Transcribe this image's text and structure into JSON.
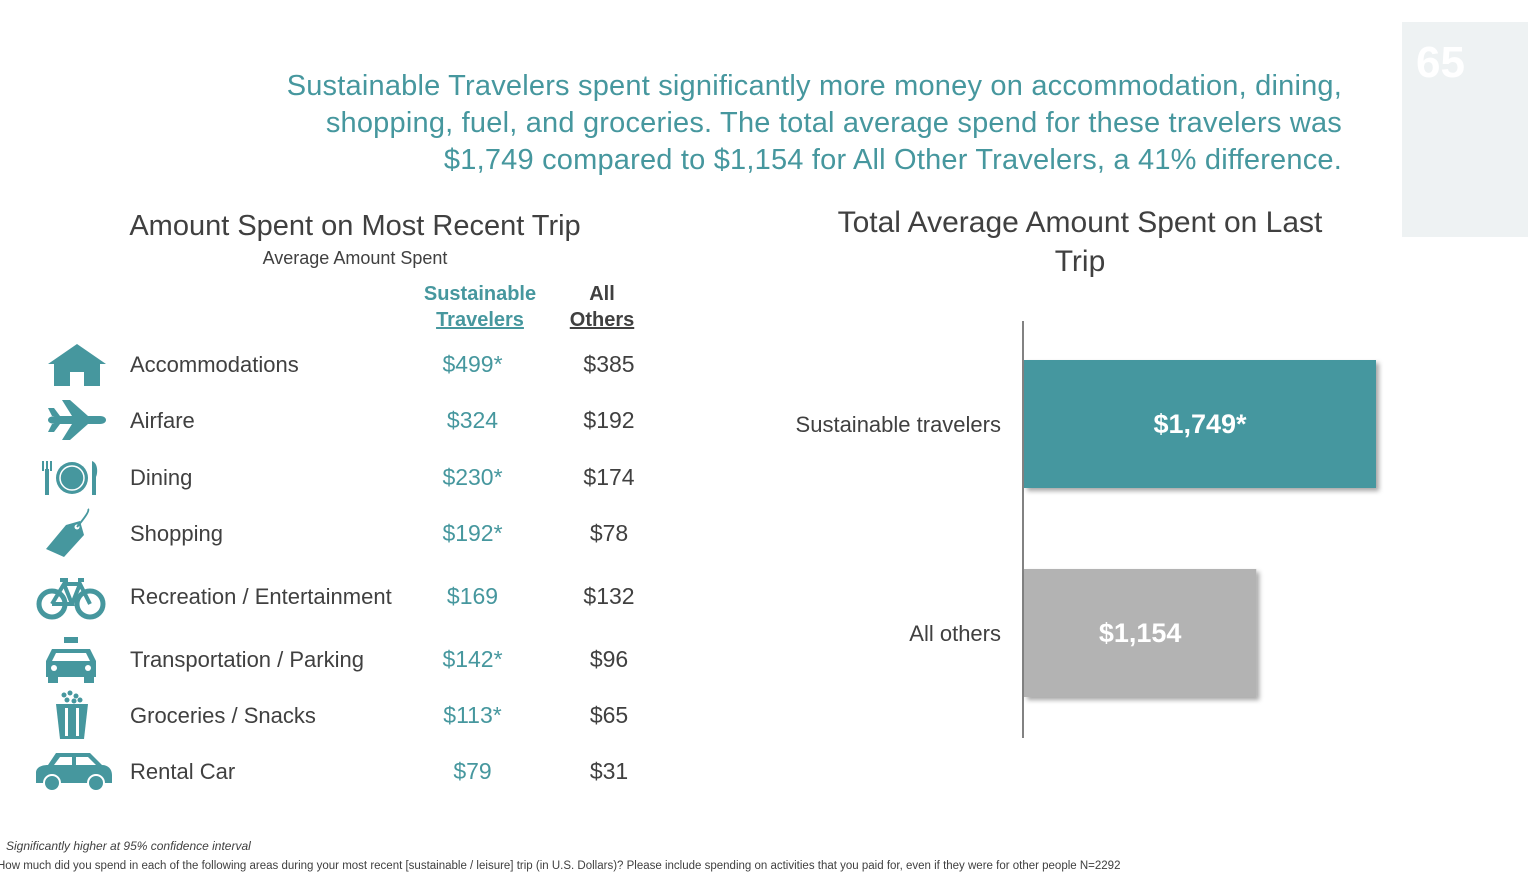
{
  "page_number": "65",
  "headline": {
    "line1": "Sustainable Travelers spent significantly more money on accommodation, dining,",
    "line2": "shopping, fuel, and groceries.  The total average spend for these travelers was",
    "line3": "$1,749 compared to $1,154 for All Other Travelers, a 41% difference."
  },
  "table": {
    "title": "Amount Spent on Most Recent Trip",
    "subtitle": "Average Amount Spent",
    "col_sustainable_line1": "Sustainable",
    "col_sustainable_line2": "Travelers",
    "col_others_line1": "All",
    "col_others_line2": "Others",
    "rows": [
      {
        "icon": "house-icon",
        "category": "Accommodations",
        "sustainable": "$499*",
        "others": "$385"
      },
      {
        "icon": "airplane-icon",
        "category": "Airfare",
        "sustainable": "$324",
        "others": "$192"
      },
      {
        "icon": "dining-plate-icon",
        "category": "Dining",
        "sustainable": "$230*",
        "others": "$174"
      },
      {
        "icon": "price-tag-icon",
        "category": "Shopping",
        "sustainable": "$192*",
        "others": "$78"
      },
      {
        "icon": "bicycle-icon",
        "category": "Recreation / Entertainment",
        "sustainable": "$169",
        "others": "$132"
      },
      {
        "icon": "taxi-icon",
        "category": "Transportation / Parking",
        "sustainable": "$142*",
        "others": "$96"
      },
      {
        "icon": "popcorn-icon",
        "category": "Groceries / Snacks",
        "sustainable": "$113*",
        "others": "$65"
      },
      {
        "icon": "car-icon",
        "category": "Rental Car",
        "sustainable": "$79",
        "others": "$31"
      }
    ]
  },
  "chart_data": {
    "type": "bar",
    "orientation": "horizontal",
    "title": "Total Average Amount Spent on Last Trip",
    "categories": [
      "Sustainable travelers",
      "All others"
    ],
    "values": [
      1749,
      1154
    ],
    "value_labels": [
      "$1,749*",
      "$1,154"
    ],
    "colors": [
      "#44979f",
      "#b3b3b3"
    ],
    "grid": false
  },
  "footnotes": {
    "significance": "Significantly higher at 95% confidence interval",
    "question": "How much did you spend in each of the following areas during your most recent [sustainable / leisure] trip (in U.S. Dollars)?  Please include spending on activities that you paid for, even if they were for other people N=2292"
  },
  "colors": {
    "accent": "#46979e",
    "gray_bar": "#b3b3b3",
    "text": "#404040"
  }
}
